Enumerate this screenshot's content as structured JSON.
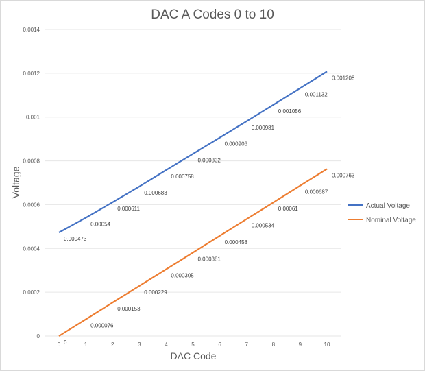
{
  "chart_data": {
    "type": "line",
    "title": "DAC A Codes 0 to 10",
    "xlabel": "DAC Code",
    "ylabel": "Voltage",
    "x": [
      0,
      1,
      2,
      3,
      4,
      5,
      6,
      7,
      8,
      9,
      10
    ],
    "xlim": [
      0,
      10
    ],
    "ylim": [
      0,
      0.0014
    ],
    "yticks": [
      "0",
      "0.0002",
      "0.0004",
      "0.0006",
      "0.0008",
      "0.001",
      "0.0012",
      "0.0014"
    ],
    "xticks": [
      "0",
      "1",
      "2",
      "3",
      "4",
      "5",
      "6",
      "7",
      "8",
      "9",
      "10"
    ],
    "grid": true,
    "legend_position": "right",
    "series": [
      {
        "name": "Actual Voltage",
        "color": "#4472c4",
        "values": [
          0.000473,
          0.00054,
          0.000611,
          0.000683,
          0.000758,
          0.000832,
          0.000906,
          0.000981,
          0.001056,
          0.001132,
          0.001208
        ],
        "labels": [
          "0.000473",
          "0.00054",
          "0.000611",
          "0.000683",
          "0.000758",
          "0.000832",
          "0.000906",
          "0.000981",
          "0.001056",
          "0.001132",
          "0.001208"
        ]
      },
      {
        "name": "Nominal Voltage",
        "color": "#ed7d31",
        "values": [
          0,
          7.6e-05,
          0.000153,
          0.000229,
          0.000305,
          0.000381,
          0.000458,
          0.000534,
          0.00061,
          0.000687,
          0.000763
        ],
        "labels": [
          "0",
          "0.000076",
          "0.000153",
          "0.000229",
          "0.000305",
          "0.000381",
          "0.000458",
          "0.000534",
          "0.00061",
          "0.000687",
          "0.000763"
        ]
      }
    ]
  }
}
